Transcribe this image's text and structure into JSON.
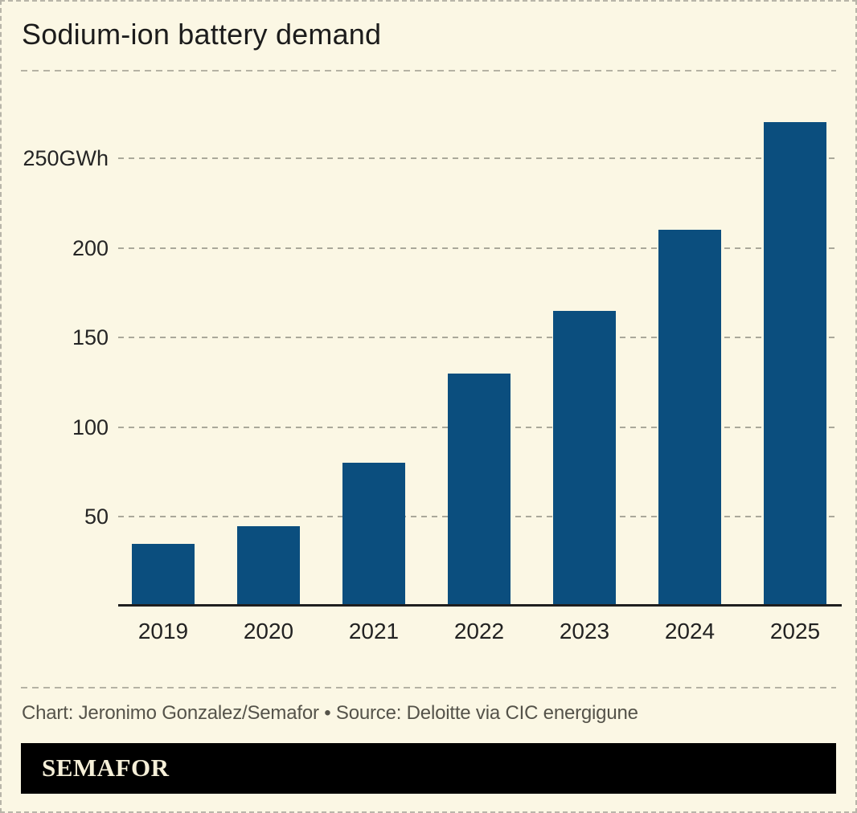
{
  "header": {
    "title": "Sodium-ion battery demand"
  },
  "chart_data": {
    "type": "bar",
    "title": "Sodium-ion battery demand",
    "categories": [
      "2019",
      "2020",
      "2021",
      "2022",
      "2023",
      "2024",
      "2025"
    ],
    "values": [
      35,
      45,
      80,
      130,
      165,
      210,
      270
    ],
    "unit": "GWh",
    "xlabel": "",
    "ylabel": "",
    "yticks": [
      50,
      100,
      150,
      200,
      250
    ],
    "ytick_labels": [
      "50",
      "100",
      "150",
      "200",
      "250GWh"
    ],
    "ylim": [
      0,
      280
    ],
    "grid": "horizontal-dashed",
    "legend": "none",
    "bar_color": "#0b4e7e"
  },
  "footer": {
    "credit": "Chart: Jeronimo Gonzalez/Semafor • Source: Deloitte via CIC energigune",
    "logo": "SEMAFOR"
  },
  "colors": {
    "background": "#fbf7e4",
    "bar": "#0b4e7e",
    "axis": "#1f1f1f",
    "gridline": "#aaa89a",
    "logo_background": "#000000",
    "logo_text": "#f5efd8"
  }
}
